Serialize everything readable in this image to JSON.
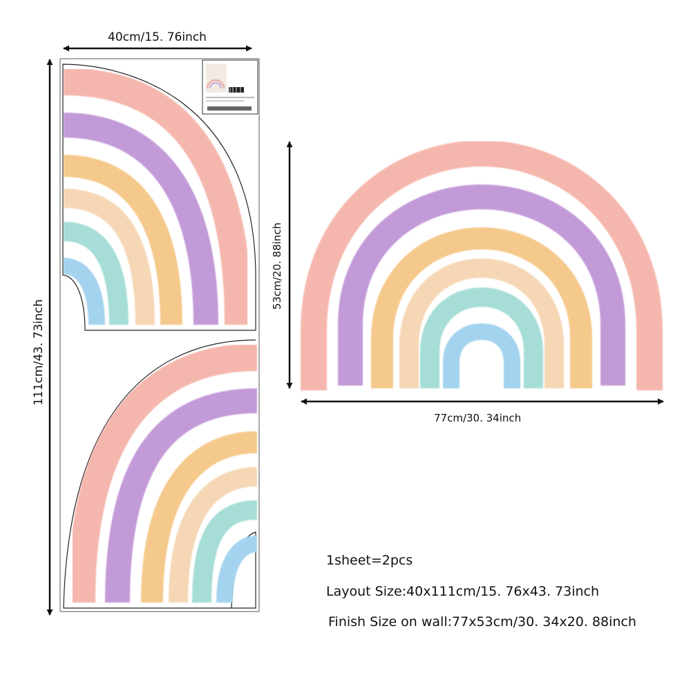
{
  "dimensions": {
    "sheet_width": "40cm/15. 76inch",
    "sheet_height": "111cm/43. 73inch",
    "finish_height": "53cm/20. 88inch",
    "finish_width": "77cm/30. 34inch"
  },
  "specs": {
    "pieces": "1sheet=2pcs",
    "layout_label": "Layout Size",
    "layout_value": "40x111cm/15. 76x43. 73inch",
    "finish_label": "Finish Size on wall",
    "finish_value": "77x53cm/30. 34x20. 88inch"
  },
  "rainbow_colors": [
    "#f5b7ad",
    "#c39ad8",
    "#f5c98c",
    "#f6d7b5",
    "#a6ded7",
    "#a3d3ee"
  ],
  "icons": [
    "arrow-icon",
    "product-thumbnail"
  ]
}
